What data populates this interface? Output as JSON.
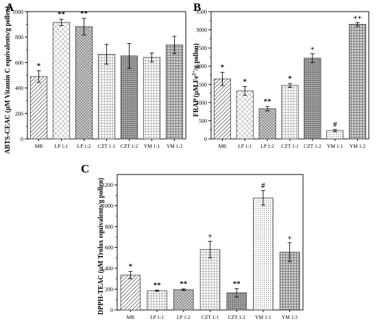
{
  "colors": {
    "bar_stroke": "#3a3a3a",
    "axis": "#000000",
    "background": "#ffffff"
  },
  "chart_data": [
    {
      "panel": "A",
      "type": "bar",
      "categories": [
        "MB",
        "LP 1:1",
        "LP 1:2",
        "CZT 1:1",
        "CZT 1:2",
        "YM 1:1",
        "YM 1:2"
      ],
      "values": [
        490,
        915,
        882,
        665,
        652,
        640,
        738
      ],
      "errors": [
        45,
        25,
        65,
        78,
        98,
        35,
        68
      ],
      "significance": [
        "*",
        "**",
        "**",
        "",
        "",
        "",
        ""
      ],
      "patterns": [
        "diag-dense",
        "diamond",
        "crosshatch-dark",
        "grid-fine",
        "grid-dark",
        "grid-fine",
        "grid-med"
      ],
      "ylabel": "ABTS-CEAC (µM Vitamin C equivalents/g pollen)",
      "ylim": [
        0,
        1000
      ],
      "yticks": [
        0,
        200,
        400,
        600,
        800,
        1000
      ],
      "grid": false
    },
    {
      "panel": "B",
      "type": "bar",
      "categories": [
        "MB",
        "LP 1:1",
        "LP 1:2",
        "CZT 1:1",
        "CZT 1:2",
        "YM 1:1",
        "YM 1:2"
      ],
      "values": [
        1650,
        1320,
        830,
        1470,
        2220,
        230,
        3150
      ],
      "errors": [
        180,
        120,
        60,
        50,
        120,
        30,
        50
      ],
      "significance": [
        "*",
        "*",
        "**",
        "*",
        "+",
        "#",
        "++"
      ],
      "patterns": [
        "diag-dense",
        "diamond",
        "crosshatch-dark",
        "grid-fine",
        "grid-dark",
        "dots-fine",
        "grid-med"
      ],
      "ylabel_main": "FRAP (µM Fe",
      "ylabel_sup": "2+",
      "ylabel_end": "/g pollen)",
      "ylim": [
        0,
        3500
      ],
      "yticks": [
        0,
        500,
        1000,
        1500,
        2000,
        2500,
        3000,
        3500
      ],
      "grid": false
    },
    {
      "panel": "C",
      "type": "bar",
      "categories": [
        "MB",
        "LP 1:1",
        "LP 1:2",
        "CZT 1:1",
        "CZT 1:2",
        "YM 1:1",
        "YM 1:2"
      ],
      "values": [
        335,
        185,
        195,
        580,
        165,
        1075,
        555
      ],
      "errors": [
        35,
        5,
        8,
        80,
        40,
        70,
        90
      ],
      "significance": [
        "*",
        "**",
        "**",
        "+",
        "**",
        "#",
        "+"
      ],
      "patterns": [
        "diag-dense",
        "grid-fine",
        "crosshatch-dark",
        "grid-fine",
        "grid-dark",
        "dots-fine",
        "grid-med"
      ],
      "ylabel": "DPPH-TEAC (µM Trolox equivalents/g pollen)",
      "ylim": [
        0,
        1300
      ],
      "yticks": [
        0,
        200,
        400,
        600,
        800,
        1000,
        1200
      ],
      "grid": false
    }
  ]
}
